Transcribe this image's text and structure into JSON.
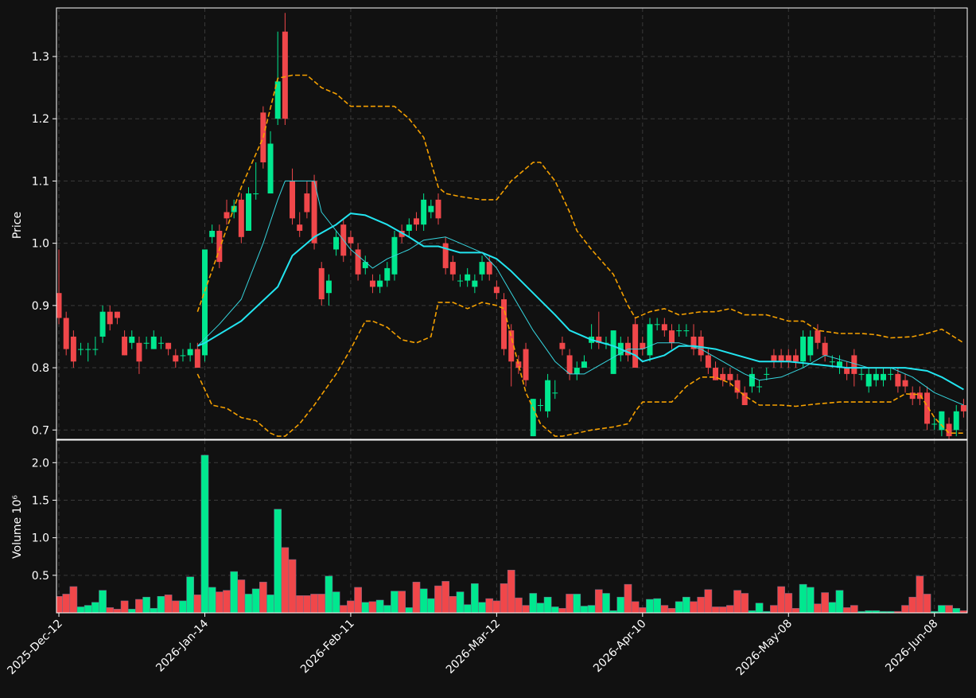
{
  "chart_data": [
    {
      "type": "candlestick",
      "ylabel": "Price",
      "xlim": [
        -0.33,
        124.5
      ],
      "ylim": [
        0.685,
        1.378
      ],
      "yticks": [
        0.7,
        0.8,
        0.9,
        {
          "value": 1.0,
          "label": "1.0"
        },
        1.1,
        1.2,
        1.3
      ],
      "grid": true,
      "up_color": "#00e88f",
      "down_color": "#f0474a",
      "open": [
        0.92,
        0.88,
        0.85,
        0.83,
        0.83,
        0.83,
        0.85,
        0.89,
        0.89,
        0.85,
        0.84,
        0.84,
        0.84,
        0.83,
        0.84,
        0.84,
        0.82,
        0.82,
        0.82,
        0.83,
        0.82,
        1.01,
        1.02,
        1.05,
        1.05,
        1.07,
        1.02,
        1.08,
        1.21,
        1.08,
        1.2,
        1.34,
        1.1,
        1.03,
        1.08,
        1.1,
        0.96,
        0.92,
        0.99,
        1.03,
        1.01,
        0.99,
        0.96,
        0.94,
        0.93,
        0.94,
        0.95,
        1.02,
        1.02,
        1.04,
        1.03,
        1.05,
        1.07,
        1.0,
        0.97,
        0.94,
        0.94,
        0.93,
        0.95,
        0.97,
        0.93,
        0.91,
        0.86,
        0.81,
        0.83,
        0.69,
        0.74,
        0.73,
        0.76,
        0.84,
        0.82,
        0.79,
        0.8,
        0.84,
        0.85,
        0.84,
        0.79,
        0.82,
        0.84,
        0.87,
        0.84,
        0.82,
        0.87,
        0.87,
        0.86,
        0.86,
        0.86,
        0.85,
        0.85,
        0.82,
        0.8,
        0.79,
        0.79,
        0.78,
        0.76,
        0.77,
        0.77,
        0.79,
        0.82,
        0.82,
        0.82,
        0.82,
        0.81,
        0.82,
        0.86,
        0.84,
        0.81,
        0.8,
        0.8,
        0.82,
        0.79,
        0.77,
        0.78,
        0.78,
        0.79,
        0.79,
        0.78,
        0.76,
        0.76,
        0.76,
        0.71,
        0.7,
        0.71,
        0.7,
        0.74
      ],
      "high": [
        0.99,
        0.89,
        0.86,
        0.84,
        0.84,
        0.85,
        0.9,
        0.9,
        0.89,
        0.86,
        0.86,
        0.85,
        0.85,
        0.86,
        0.85,
        0.84,
        0.83,
        0.83,
        0.84,
        0.84,
        0.99,
        1.03,
        1.03,
        1.07,
        1.07,
        1.08,
        1.09,
        1.13,
        1.22,
        1.18,
        1.34,
        1.37,
        1.12,
        1.05,
        1.1,
        1.11,
        0.97,
        0.95,
        1.02,
        1.04,
        1.02,
        1.0,
        0.98,
        0.95,
        0.95,
        0.97,
        1.02,
        1.03,
        1.04,
        1.05,
        1.08,
        1.07,
        1.08,
        1.01,
        0.98,
        0.95,
        0.96,
        0.95,
        0.98,
        0.98,
        0.94,
        0.92,
        0.87,
        0.82,
        0.84,
        0.75,
        0.75,
        0.79,
        0.78,
        0.85,
        0.83,
        0.81,
        0.82,
        0.87,
        0.89,
        0.85,
        0.86,
        0.85,
        0.85,
        0.88,
        0.85,
        0.88,
        0.88,
        0.88,
        0.87,
        0.87,
        0.87,
        0.87,
        0.86,
        0.83,
        0.81,
        0.8,
        0.8,
        0.79,
        0.77,
        0.8,
        0.78,
        0.8,
        0.83,
        0.83,
        0.83,
        0.83,
        0.86,
        0.86,
        0.87,
        0.85,
        0.82,
        0.82,
        0.81,
        0.83,
        0.8,
        0.8,
        0.8,
        0.8,
        0.8,
        0.8,
        0.79,
        0.77,
        0.77,
        0.77,
        0.72,
        0.73,
        0.72,
        0.74,
        0.75
      ],
      "low": [
        0.87,
        0.82,
        0.8,
        0.82,
        0.81,
        0.82,
        0.84,
        0.86,
        0.87,
        0.82,
        0.83,
        0.79,
        0.83,
        0.83,
        0.83,
        0.82,
        0.8,
        0.81,
        0.81,
        0.8,
        0.81,
        1.0,
        0.96,
        1.03,
        1.04,
        1.0,
        1.02,
        1.07,
        1.12,
        1.08,
        1.19,
        1.19,
        1.03,
        1.01,
        1.04,
        0.99,
        0.9,
        0.9,
        0.98,
        0.97,
        0.98,
        0.94,
        0.95,
        0.92,
        0.92,
        0.93,
        0.94,
        1.0,
        1.01,
        1.02,
        1.02,
        1.04,
        1.03,
        0.95,
        0.94,
        0.93,
        0.93,
        0.92,
        0.94,
        0.94,
        0.91,
        0.82,
        0.77,
        0.79,
        0.77,
        0.69,
        0.73,
        0.72,
        0.75,
        0.82,
        0.78,
        0.78,
        0.8,
        0.83,
        0.83,
        0.83,
        0.79,
        0.81,
        0.81,
        0.8,
        0.82,
        0.81,
        0.86,
        0.85,
        0.83,
        0.85,
        0.85,
        0.82,
        0.81,
        0.79,
        0.78,
        0.77,
        0.77,
        0.75,
        0.74,
        0.76,
        0.76,
        0.78,
        0.8,
        0.8,
        0.8,
        0.8,
        0.8,
        0.81,
        0.83,
        0.81,
        0.8,
        0.79,
        0.78,
        0.77,
        0.78,
        0.76,
        0.77,
        0.77,
        0.78,
        0.76,
        0.76,
        0.74,
        0.74,
        0.7,
        0.7,
        0.69,
        0.68,
        0.69,
        0.72
      ],
      "close": [
        0.88,
        0.83,
        0.81,
        0.83,
        0.83,
        0.83,
        0.89,
        0.87,
        0.88,
        0.82,
        0.85,
        0.81,
        0.84,
        0.85,
        0.84,
        0.83,
        0.81,
        0.82,
        0.83,
        0.8,
        0.99,
        1.02,
        0.97,
        1.04,
        1.06,
        1.01,
        1.08,
        1.08,
        1.13,
        1.16,
        1.26,
        1.2,
        1.04,
        1.02,
        1.05,
        1.0,
        0.91,
        0.94,
        1.01,
        0.98,
        1.0,
        0.95,
        0.97,
        0.93,
        0.94,
        0.96,
        1.01,
        1.01,
        1.03,
        1.03,
        1.07,
        1.06,
        1.04,
        0.96,
        0.95,
        0.94,
        0.95,
        0.94,
        0.97,
        0.95,
        0.92,
        0.83,
        0.81,
        0.8,
        0.78,
        0.75,
        0.74,
        0.78,
        0.76,
        0.83,
        0.79,
        0.8,
        0.81,
        0.85,
        0.84,
        0.84,
        0.86,
        0.84,
        0.82,
        0.8,
        0.83,
        0.87,
        0.87,
        0.86,
        0.84,
        0.86,
        0.86,
        0.83,
        0.82,
        0.8,
        0.78,
        0.78,
        0.78,
        0.76,
        0.74,
        0.79,
        0.77,
        0.79,
        0.81,
        0.81,
        0.81,
        0.81,
        0.85,
        0.85,
        0.84,
        0.82,
        0.81,
        0.81,
        0.79,
        0.79,
        0.79,
        0.79,
        0.79,
        0.79,
        0.79,
        0.77,
        0.77,
        0.75,
        0.75,
        0.71,
        0.71,
        0.73,
        0.69,
        0.73,
        0.73
      ],
      "series": [
        {
          "color": "#22e5f0",
          "width": 2,
          "dash": false,
          "x": [
            19,
            20,
            25,
            30,
            32,
            35,
            38,
            40,
            42,
            45,
            48,
            50,
            52,
            55,
            58,
            60,
            62,
            65,
            68,
            70,
            73,
            76,
            79,
            80,
            83,
            85,
            87,
            90,
            93,
            96,
            100,
            104,
            108,
            112,
            116,
            119,
            121,
            124
          ],
          "values": [
            0.835,
            0.84,
            0.875,
            0.93,
            0.98,
            1.01,
            1.03,
            1.048,
            1.045,
            1.03,
            1.01,
            0.995,
            0.995,
            0.985,
            0.985,
            0.975,
            0.955,
            0.92,
            0.885,
            0.86,
            0.845,
            0.835,
            0.82,
            0.81,
            0.82,
            0.835,
            0.835,
            0.83,
            0.82,
            0.81,
            0.81,
            0.805,
            0.8,
            0.8,
            0.8,
            0.795,
            0.785,
            0.765
          ]
        },
        {
          "color": "#36d6df",
          "width": 1,
          "dash": false,
          "x": [
            19,
            22,
            25,
            28,
            30,
            31,
            35,
            36,
            38,
            40,
            43,
            45,
            48,
            50,
            53,
            55,
            58,
            60,
            62,
            65,
            68,
            70,
            72,
            75,
            78,
            80,
            82,
            85,
            88,
            91,
            94,
            96,
            99,
            102,
            105,
            108,
            111,
            114,
            117,
            120,
            122,
            124
          ],
          "values": [
            0.835,
            0.87,
            0.91,
            1.0,
            1.07,
            1.1,
            1.1,
            1.05,
            1.02,
            0.99,
            0.96,
            0.975,
            0.99,
            1.005,
            1.01,
            1.0,
            0.985,
            0.96,
            0.92,
            0.86,
            0.81,
            0.79,
            0.79,
            0.81,
            0.83,
            0.83,
            0.84,
            0.84,
            0.83,
            0.81,
            0.79,
            0.78,
            0.785,
            0.8,
            0.82,
            0.81,
            0.8,
            0.8,
            0.785,
            0.76,
            0.75,
            0.74
          ]
        },
        {
          "color": "#f5a000",
          "width": 1.6,
          "dash": true,
          "x": [
            19,
            22,
            25,
            28,
            30,
            32,
            34,
            36,
            38,
            40,
            43,
            46,
            48,
            50,
            52,
            53,
            55,
            58,
            60,
            62,
            64,
            65,
            66,
            68,
            70,
            71,
            73,
            76,
            78,
            79,
            81,
            83,
            85,
            88,
            90,
            92,
            94,
            97,
            100,
            102,
            104,
            107,
            110,
            112,
            114,
            117,
            119,
            121,
            124
          ],
          "values": [
            0.89,
            0.99,
            1.09,
            1.17,
            1.265,
            1.27,
            1.27,
            1.25,
            1.24,
            1.22,
            1.22,
            1.22,
            1.2,
            1.17,
            1.09,
            1.08,
            1.075,
            1.07,
            1.07,
            1.1,
            1.12,
            1.13,
            1.13,
            1.1,
            1.05,
            1.02,
            0.99,
            0.95,
            0.9,
            0.88,
            0.89,
            0.895,
            0.885,
            0.89,
            0.89,
            0.895,
            0.885,
            0.885,
            0.875,
            0.875,
            0.86,
            0.855,
            0.855,
            0.853,
            0.848,
            0.85,
            0.855,
            0.862,
            0.84
          ]
        },
        {
          "color": "#f5a000",
          "width": 1.6,
          "dash": true,
          "x": [
            19,
            21,
            23,
            25,
            27,
            29,
            30,
            31,
            33,
            35,
            38,
            40,
            42,
            43,
            45,
            47,
            49,
            51,
            52,
            54,
            56,
            58,
            60,
            61,
            62,
            64,
            66,
            68,
            69,
            71,
            73,
            76,
            78,
            79,
            80,
            82,
            84,
            86,
            88,
            90,
            92,
            94,
            96,
            99,
            101,
            104,
            107,
            110,
            112,
            114,
            116,
            118,
            120,
            122,
            124
          ],
          "values": [
            0.79,
            0.74,
            0.735,
            0.72,
            0.715,
            0.695,
            0.69,
            0.69,
            0.71,
            0.74,
            0.79,
            0.83,
            0.875,
            0.875,
            0.865,
            0.845,
            0.84,
            0.85,
            0.905,
            0.905,
            0.895,
            0.905,
            0.9,
            0.895,
            0.85,
            0.76,
            0.71,
            0.69,
            0.69,
            0.695,
            0.7,
            0.705,
            0.71,
            0.73,
            0.745,
            0.745,
            0.745,
            0.77,
            0.785,
            0.785,
            0.775,
            0.755,
            0.74,
            0.74,
            0.738,
            0.742,
            0.745,
            0.745,
            0.745,
            0.745,
            0.758,
            0.757,
            0.72,
            0.695,
            0.695
          ]
        }
      ]
    },
    {
      "type": "bar",
      "ylabel": "Volume",
      "offset_label": "10⁶",
      "xlim": [
        -0.33,
        124.5
      ],
      "ylim": [
        0,
        2.3
      ],
      "yticks": [
        0.5,
        {
          "value": 1.0,
          "label": "1.0"
        },
        1.5,
        {
          "value": 2.0,
          "label": "2.0"
        }
      ],
      "grid": true,
      "xticks": [
        {
          "value": 0,
          "label": "2025-Dec-12"
        },
        {
          "value": 20,
          "label": "2026-Jan-14"
        },
        {
          "value": 40,
          "label": "2026-Feb-11"
        },
        {
          "value": 60,
          "label": "2026-Mar-12"
        },
        {
          "value": 80,
          "label": "2026-Apr-10"
        },
        {
          "value": 100,
          "label": "2026-May-08"
        },
        {
          "value": 120,
          "label": "2026-Jun-08"
        }
      ],
      "values": [
        0.22,
        0.25,
        0.35,
        0.08,
        0.1,
        0.14,
        0.3,
        0.07,
        0.05,
        0.16,
        0.05,
        0.18,
        0.21,
        0.06,
        0.22,
        0.24,
        0.16,
        0.16,
        0.48,
        0.24,
        2.1,
        0.34,
        0.28,
        0.3,
        0.55,
        0.44,
        0.25,
        0.32,
        0.41,
        0.24,
        1.38,
        0.87,
        0.71,
        0.23,
        0.23,
        0.25,
        0.25,
        0.49,
        0.28,
        0.1,
        0.16,
        0.34,
        0.14,
        0.15,
        0.17,
        0.1,
        0.29,
        0.29,
        0.07,
        0.41,
        0.32,
        0.19,
        0.36,
        0.42,
        0.22,
        0.28,
        0.11,
        0.39,
        0.14,
        0.19,
        0.16,
        0.39,
        0.57,
        0.2,
        0.1,
        0.26,
        0.13,
        0.21,
        0.08,
        0.06,
        0.25,
        0.25,
        0.09,
        0.1,
        0.31,
        0.26,
        0.03,
        0.21,
        0.38,
        0.15,
        0.07,
        0.18,
        0.19,
        0.1,
        0.06,
        0.15,
        0.21,
        0.15,
        0.21,
        0.31,
        0.08,
        0.08,
        0.1,
        0.3,
        0.26,
        0.03,
        0.13,
        0.02,
        0.1,
        0.35,
        0.26,
        0.06,
        0.38,
        0.34,
        0.12,
        0.27,
        0.14,
        0.3,
        0.07,
        0.1,
        0.02,
        0.03,
        0.03,
        0.02,
        0.02,
        0.02,
        0.1,
        0.21,
        0.49,
        0.25,
        0.02,
        0.1,
        0.1,
        0.06,
        0.03
      ]
    }
  ]
}
